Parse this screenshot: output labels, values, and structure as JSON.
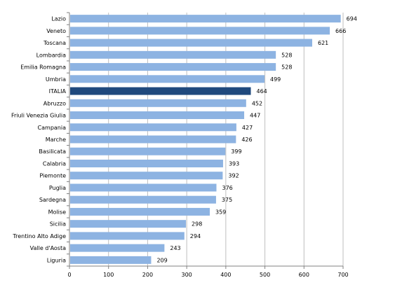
{
  "chart_data": {
    "type": "bar",
    "orientation": "horizontal",
    "title": "",
    "xlabel": "",
    "ylabel": "",
    "categories": [
      "Lazio",
      "Veneto",
      "Toscana",
      "Lombardia",
      "Emilia Romagna",
      "Umbria",
      "ITALIA",
      "Abruzzo",
      "Friuli Venezia Giulia",
      "Campania",
      "Marche",
      "Basilicata",
      "Calabria",
      "Piemonte",
      "Puglia",
      "Sardegna",
      "Molise",
      "Sicilia",
      "Trentino Alto Adige",
      "Valle d'Aosta",
      "Liguria"
    ],
    "values": [
      694,
      666,
      621,
      528,
      528,
      499,
      464,
      452,
      447,
      427,
      426,
      399,
      393,
      392,
      376,
      375,
      359,
      298,
      294,
      243,
      209
    ],
    "value_labels": [
      "694",
      "666",
      "621",
      "528",
      "528",
      "499",
      "464",
      "452",
      "447",
      "427",
      "426",
      "399",
      "393",
      "392",
      "376",
      "375",
      "359",
      "298",
      "294",
      "243",
      "209"
    ],
    "xlim": [
      0,
      700
    ],
    "x_ticks": [
      "0",
      "100",
      "200",
      "300",
      "400",
      "500",
      "600",
      "700"
    ],
    "grid": "vertical",
    "legend": "none",
    "highlight_category": "ITALIA",
    "colors": {
      "bar": "#8db3e2",
      "highlight": "#1f497d",
      "grid": "#bfbfbf",
      "axis": "#808080"
    }
  }
}
